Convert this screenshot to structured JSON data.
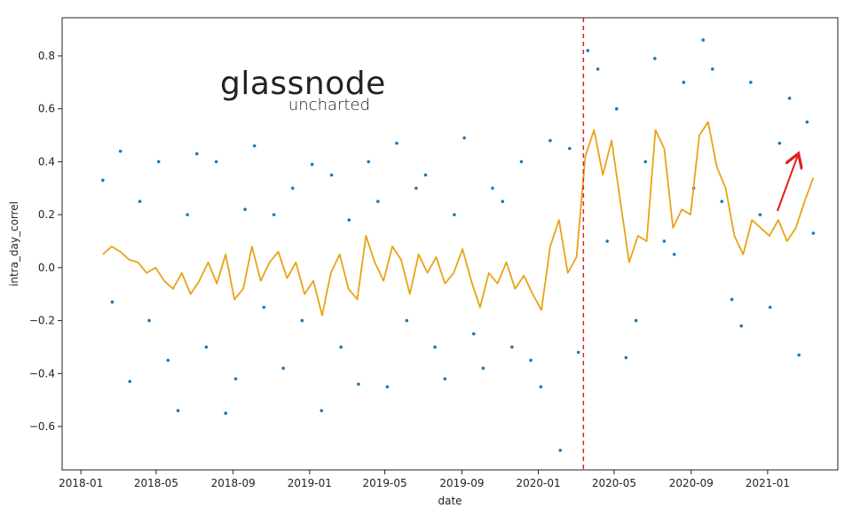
{
  "chart_data": {
    "type": "scatter",
    "xlabel": "date",
    "ylabel": "intra_day_correl",
    "logo": {
      "title": "glassnode",
      "subtitle": "uncharted",
      "color": "#d9a52a"
    },
    "xlim": [
      "2017-12-02",
      "2021-04-23"
    ],
    "xticks": [
      "2018-01",
      "2018-05",
      "2018-09",
      "2019-01",
      "2019-05",
      "2019-09",
      "2020-01",
      "2020-05",
      "2020-09",
      "2021-01"
    ],
    "ylim": [
      -0.764,
      0.944
    ],
    "yticks": [
      {
        "value": -0.6,
        "label": "−0.6"
      },
      {
        "value": -0.4,
        "label": "−0.4"
      },
      {
        "value": -0.2,
        "label": "−0.2"
      },
      {
        "value": 0,
        "label": "0.0"
      },
      0.2,
      0.4,
      0.6,
      0.8
    ],
    "vline": {
      "x": "2020-03-13",
      "color": "#d62728"
    },
    "series": [
      {
        "type": "scatter",
        "color": "#1f77b4",
        "x": [
          "2018-02-05",
          "2018-02-20",
          "2018-03-05",
          "2018-03-20",
          "2018-04-05",
          "2018-04-20",
          "2018-05-05",
          "2018-05-20",
          "2018-06-05",
          "2018-06-20",
          "2018-07-05",
          "2018-07-20",
          "2018-08-05",
          "2018-08-20",
          "2018-09-05",
          "2018-09-20",
          "2018-10-05",
          "2018-10-20",
          "2018-11-05",
          "2018-11-20",
          "2018-12-05",
          "2018-12-20",
          "2019-01-05",
          "2019-01-20",
          "2019-02-05",
          "2019-02-20",
          "2019-03-05",
          "2019-03-20",
          "2019-04-05",
          "2019-04-20",
          "2019-05-05",
          "2019-05-20",
          "2019-06-05",
          "2019-06-20",
          "2019-07-05",
          "2019-07-20",
          "2019-08-05",
          "2019-08-20",
          "2019-09-05",
          "2019-09-20",
          "2019-10-05",
          "2019-10-20",
          "2019-11-05",
          "2019-11-20",
          "2019-12-05",
          "2019-12-20",
          "2020-01-05",
          "2020-01-20",
          "2020-02-05",
          "2020-02-20",
          "2020-03-05",
          "2020-03-20",
          "2020-04-05",
          "2020-04-20",
          "2020-05-05",
          "2020-05-20",
          "2020-06-05",
          "2020-06-20",
          "2020-07-05",
          "2020-07-20",
          "2020-08-05",
          "2020-08-20",
          "2020-09-05",
          "2020-09-20",
          "2020-10-05",
          "2020-10-20",
          "2020-11-05",
          "2020-11-20",
          "2020-12-05",
          "2020-12-20",
          "2021-01-05",
          "2021-01-20",
          "2021-02-05",
          "2021-02-20",
          "2021-03-05",
          "2021-03-15"
        ],
        "values": [
          0.33,
          -0.13,
          0.44,
          -0.43,
          0.25,
          -0.2,
          0.4,
          -0.35,
          -0.54,
          0.2,
          0.43,
          -0.3,
          0.4,
          -0.55,
          -0.42,
          0.22,
          0.46,
          -0.15,
          0.2,
          -0.38,
          0.3,
          -0.2,
          0.39,
          -0.54,
          0.35,
          -0.3,
          0.18,
          -0.44,
          0.4,
          0.25,
          -0.45,
          0.47,
          -0.2,
          0.3,
          0.35,
          -0.3,
          -0.42,
          0.2,
          0.49,
          -0.25,
          -0.38,
          0.3,
          0.25,
          -0.3,
          0.4,
          -0.35,
          -0.45,
          0.48,
          -0.69,
          0.45,
          -0.32,
          0.82,
          0.75,
          0.1,
          0.6,
          -0.34,
          -0.2,
          0.4,
          0.79,
          0.1,
          0.05,
          0.7,
          0.3,
          0.86,
          0.75,
          0.25,
          -0.12,
          -0.22,
          0.7,
          0.2,
          -0.15,
          0.47,
          0.64,
          -0.33,
          0.55,
          0.13
        ]
      },
      {
        "type": "line",
        "color": "#e8a317",
        "x": [
          "2018-02-05",
          "2018-02-19",
          "2018-03-05",
          "2018-03-19",
          "2018-04-02",
          "2018-04-16",
          "2018-04-30",
          "2018-05-14",
          "2018-05-28",
          "2018-06-11",
          "2018-06-25",
          "2018-07-09",
          "2018-07-23",
          "2018-08-06",
          "2018-08-20",
          "2018-09-03",
          "2018-09-17",
          "2018-10-01",
          "2018-10-15",
          "2018-10-29",
          "2018-11-12",
          "2018-11-26",
          "2018-12-10",
          "2018-12-24",
          "2019-01-07",
          "2019-01-21",
          "2019-02-04",
          "2019-02-18",
          "2019-03-04",
          "2019-03-18",
          "2019-04-01",
          "2019-04-15",
          "2019-04-29",
          "2019-05-13",
          "2019-05-27",
          "2019-06-10",
          "2019-06-24",
          "2019-07-08",
          "2019-07-22",
          "2019-08-05",
          "2019-08-19",
          "2019-09-02",
          "2019-09-16",
          "2019-09-30",
          "2019-10-14",
          "2019-10-28",
          "2019-11-11",
          "2019-11-25",
          "2019-12-09",
          "2019-12-23",
          "2020-01-06",
          "2020-01-20",
          "2020-02-03",
          "2020-02-17",
          "2020-03-02",
          "2020-03-16",
          "2020-03-30",
          "2020-04-13",
          "2020-04-27",
          "2020-05-11",
          "2020-05-25",
          "2020-06-08",
          "2020-06-22",
          "2020-07-06",
          "2020-07-20",
          "2020-08-03",
          "2020-08-17",
          "2020-08-31",
          "2020-09-14",
          "2020-09-28",
          "2020-10-12",
          "2020-10-26",
          "2020-11-09",
          "2020-11-23",
          "2020-12-07",
          "2020-12-21",
          "2021-01-04",
          "2021-01-18",
          "2021-02-01",
          "2021-02-15",
          "2021-03-01",
          "2021-03-15"
        ],
        "values": [
          0.05,
          0.08,
          0.06,
          0.03,
          0.02,
          -0.02,
          0,
          -0.05,
          -0.08,
          -0.02,
          -0.1,
          -0.05,
          0.02,
          -0.06,
          0.05,
          -0.12,
          -0.08,
          0.08,
          -0.05,
          0.02,
          0.06,
          -0.04,
          0.02,
          -0.1,
          -0.05,
          -0.18,
          -0.02,
          0.05,
          -0.08,
          -0.12,
          0.12,
          0.02,
          -0.05,
          0.08,
          0.03,
          -0.1,
          0.05,
          -0.02,
          0.04,
          -0.06,
          -0.02,
          0.07,
          -0.05,
          -0.15,
          -0.02,
          -0.06,
          0.02,
          -0.08,
          -0.03,
          -0.1,
          -0.16,
          0.08,
          0.18,
          -0.02,
          0.04,
          0.42,
          0.52,
          0.35,
          0.48,
          0.25,
          0.02,
          0.12,
          0.1,
          0.52,
          0.45,
          0.15,
          0.22,
          0.2,
          0.5,
          0.55,
          0.38,
          0.3,
          0.12,
          0.05,
          0.18,
          0.15,
          0.12,
          0.18,
          0.1,
          0.15,
          0.25,
          0.34
        ]
      }
    ]
  }
}
